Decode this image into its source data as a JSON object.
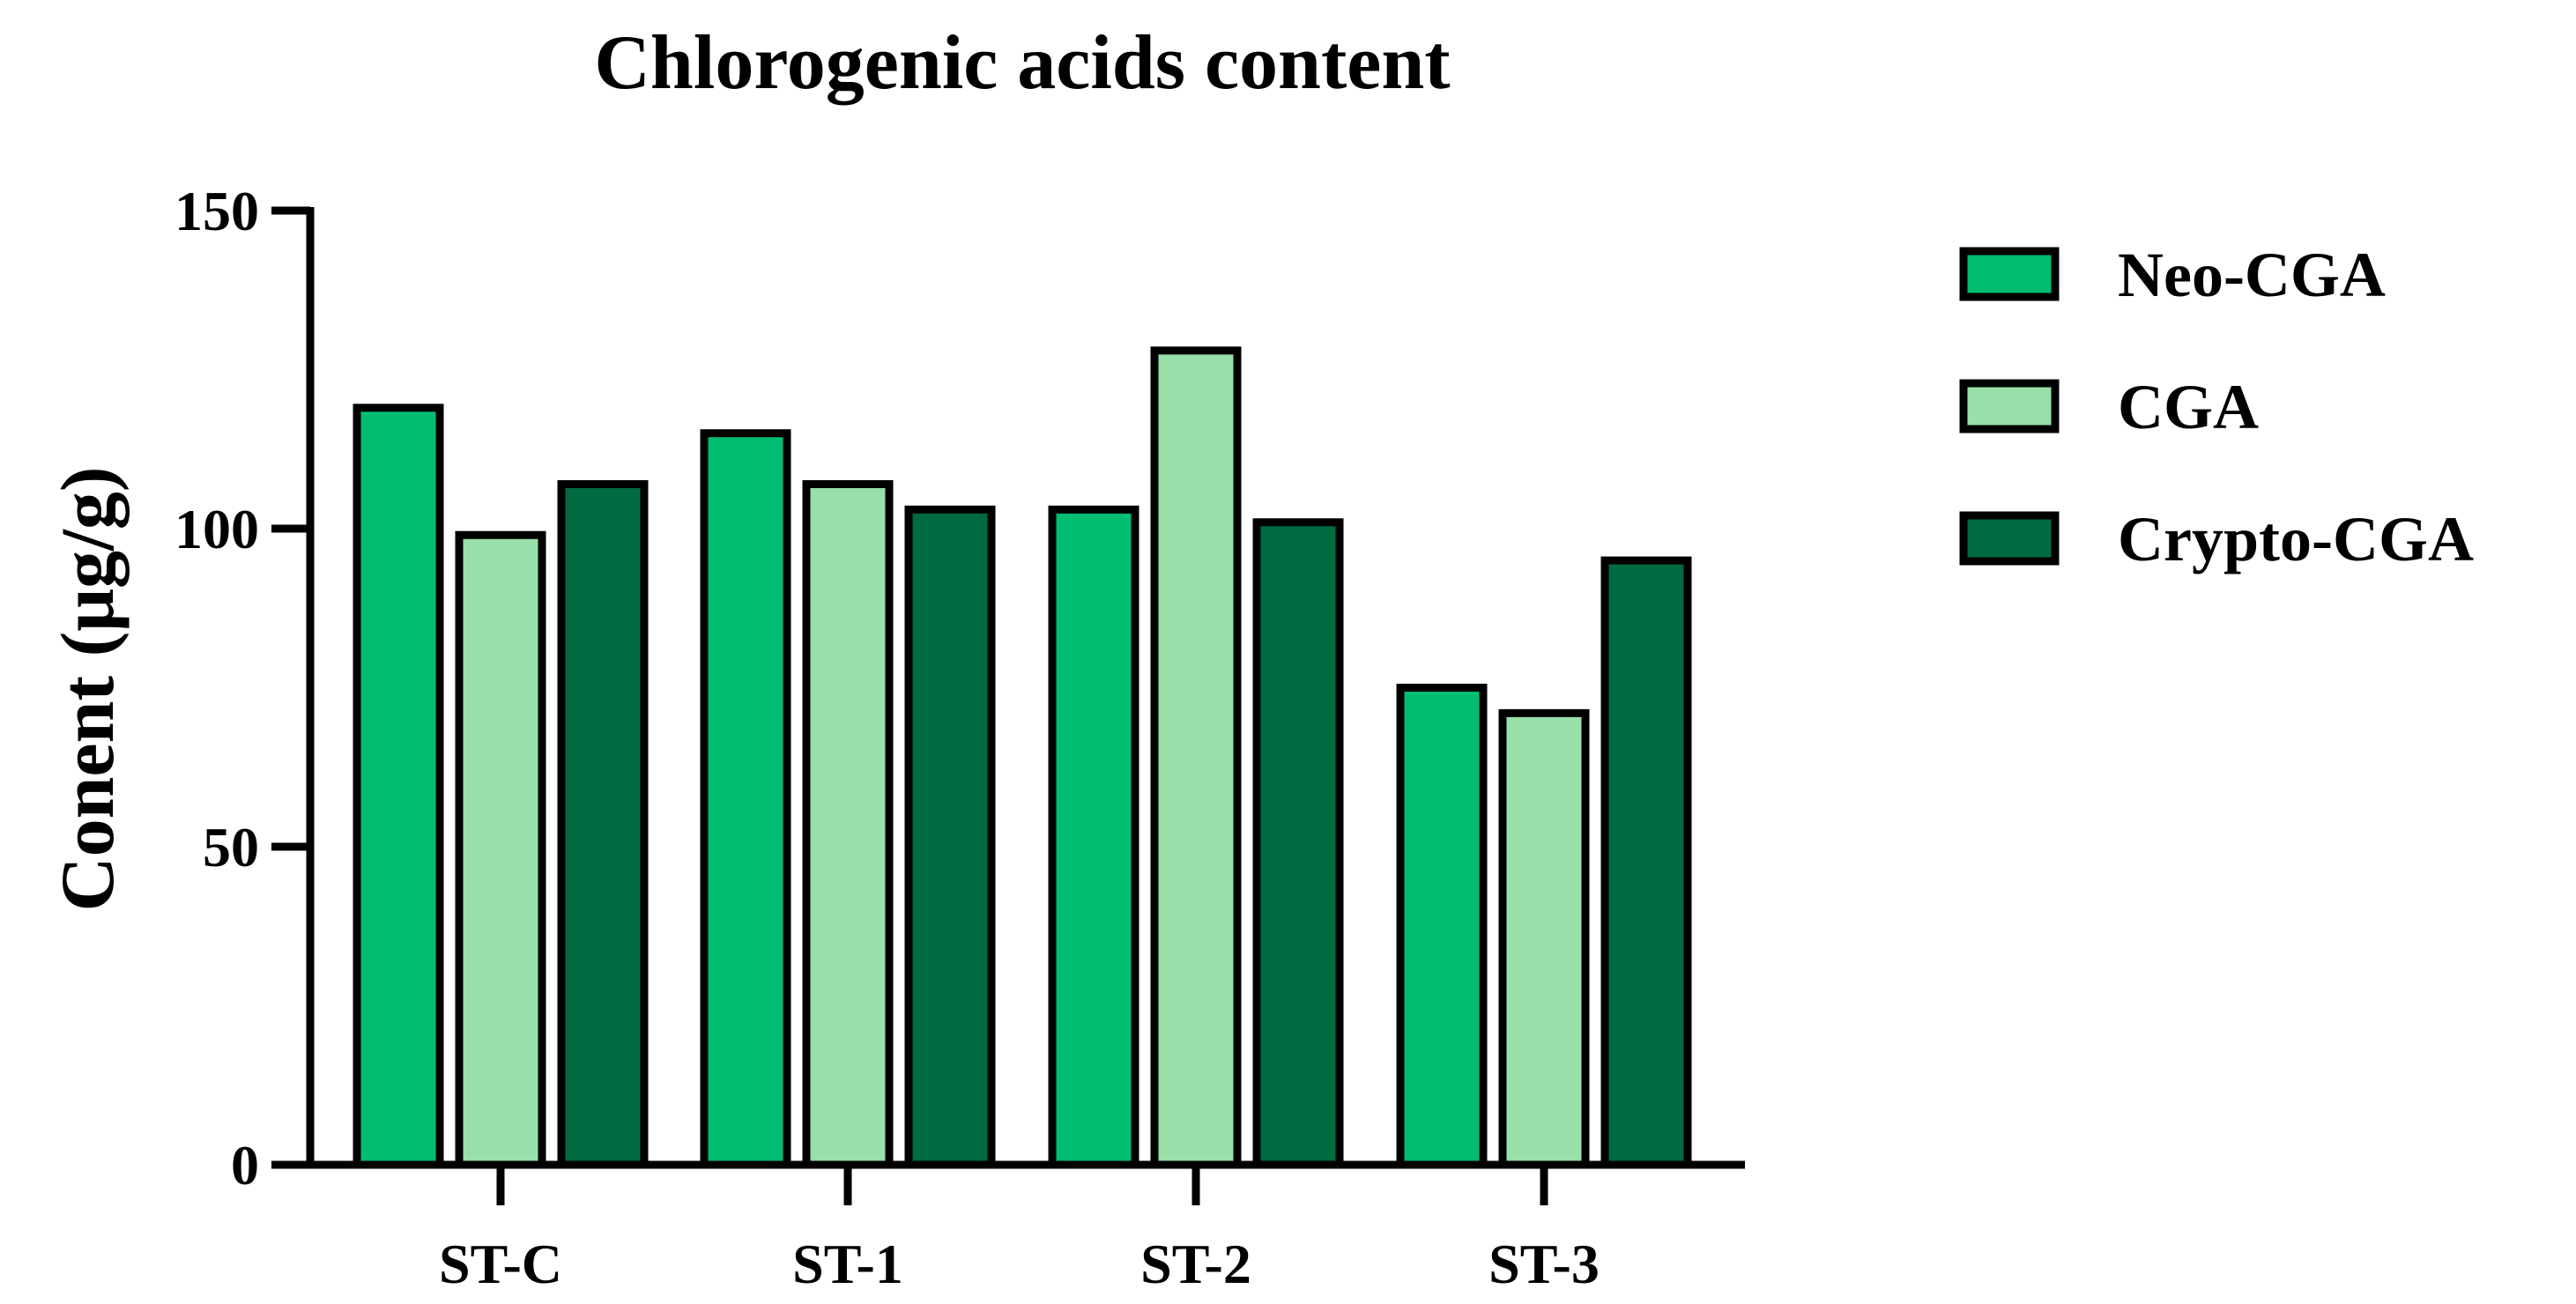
{
  "chart_data": {
    "type": "bar",
    "title": "Chlorogenic acids content",
    "xlabel": "",
    "ylabel": "Conent (μg/g)",
    "ylim": [
      0,
      150
    ],
    "yticks": [
      0,
      50,
      100,
      150
    ],
    "categories": [
      "ST-C",
      "ST-1",
      "ST-2",
      "ST-3"
    ],
    "series": [
      {
        "name": "Neo-CGA",
        "color": "#00BD72",
        "values": [
          119,
          115,
          103,
          75
        ]
      },
      {
        "name": "CGA",
        "color": "#98DFAA",
        "values": [
          99,
          107,
          128,
          71
        ]
      },
      {
        "name": "Crypto-CGA",
        "color": "#006A41",
        "values": [
          107,
          103,
          101,
          95
        ]
      }
    ],
    "legend_position": "right",
    "grid": false
  }
}
